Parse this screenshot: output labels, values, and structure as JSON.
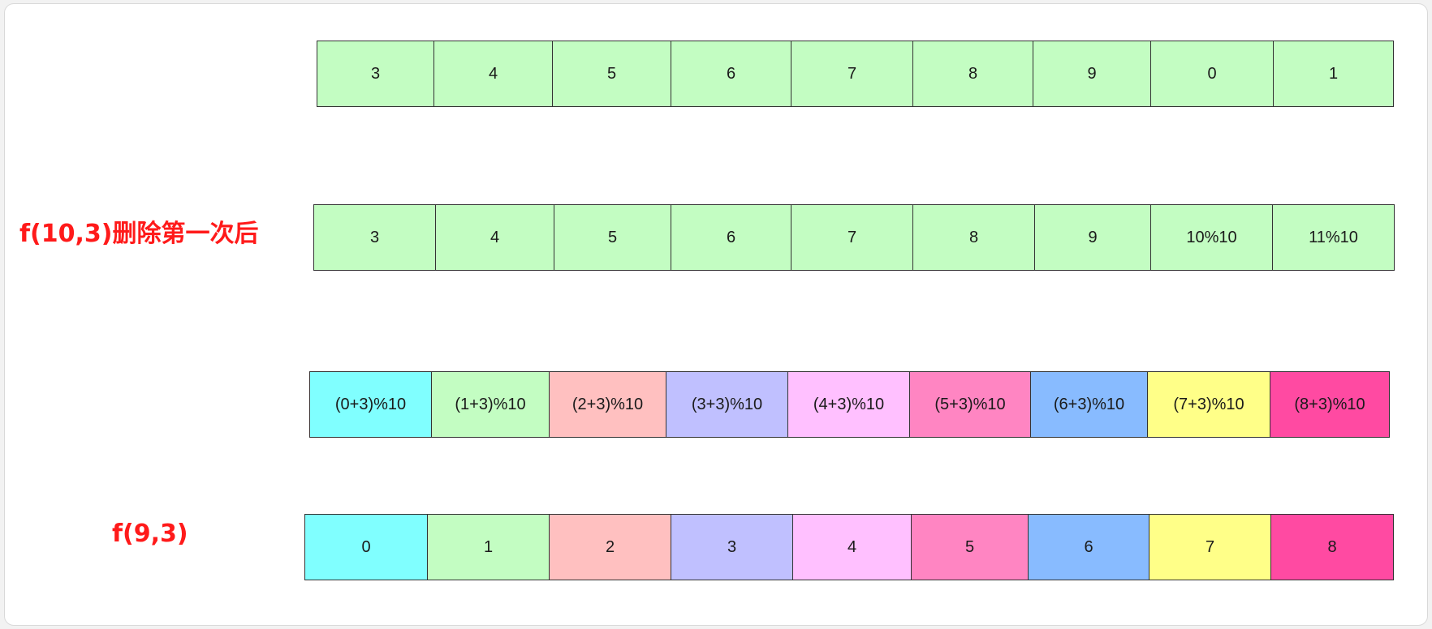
{
  "rows": [
    {
      "label": "",
      "cells": [
        {
          "text": "3",
          "color": "#c3fdc2"
        },
        {
          "text": "4",
          "color": "#c3fdc2"
        },
        {
          "text": "5",
          "color": "#c3fdc2"
        },
        {
          "text": "6",
          "color": "#c3fdc2"
        },
        {
          "text": "7",
          "color": "#c3fdc2"
        },
        {
          "text": "8",
          "color": "#c3fdc2"
        },
        {
          "text": "9",
          "color": "#c3fdc2"
        },
        {
          "text": "0",
          "color": "#c3fdc2"
        },
        {
          "text": "1",
          "color": "#c3fdc2"
        }
      ]
    },
    {
      "label": "f(10,3)删除第一次后",
      "cells": [
        {
          "text": "3",
          "color": "#c3fdc2"
        },
        {
          "text": "4",
          "color": "#c3fdc2"
        },
        {
          "text": "5",
          "color": "#c3fdc2"
        },
        {
          "text": "6",
          "color": "#c3fdc2"
        },
        {
          "text": "7",
          "color": "#c3fdc2"
        },
        {
          "text": "8",
          "color": "#c3fdc2"
        },
        {
          "text": "9",
          "color": "#c3fdc2"
        },
        {
          "text": "10%10",
          "color": "#c3fdc2"
        },
        {
          "text": "11%10",
          "color": "#c3fdc2"
        }
      ]
    },
    {
      "label": "",
      "cells": [
        {
          "text": "(0+3)%10",
          "color": "#80ffff"
        },
        {
          "text": "(1+3)%10",
          "color": "#c3fdc2"
        },
        {
          "text": "(2+3)%10",
          "color": "#ffc0c0"
        },
        {
          "text": "(3+3)%10",
          "color": "#c0c0ff"
        },
        {
          "text": "(4+3)%10",
          "color": "#ffc0ff"
        },
        {
          "text": "(5+3)%10",
          "color": "#ff85c2"
        },
        {
          "text": "(6+3)%10",
          "color": "#88bbff"
        },
        {
          "text": "(7+3)%10",
          "color": "#ffff88"
        },
        {
          "text": "(8+3)%10",
          "color": "#ff4aa2"
        }
      ]
    },
    {
      "label": "f(9,3)",
      "cells": [
        {
          "text": "0",
          "color": "#80ffff"
        },
        {
          "text": "1",
          "color": "#c3fdc2"
        },
        {
          "text": "2",
          "color": "#ffc0c0"
        },
        {
          "text": "3",
          "color": "#c0c0ff"
        },
        {
          "text": "4",
          "color": "#ffc0ff"
        },
        {
          "text": "5",
          "color": "#ff85c2"
        },
        {
          "text": "6",
          "color": "#88bbff"
        },
        {
          "text": "7",
          "color": "#ffff88"
        },
        {
          "text": "8",
          "color": "#ff4aa2"
        }
      ]
    }
  ]
}
